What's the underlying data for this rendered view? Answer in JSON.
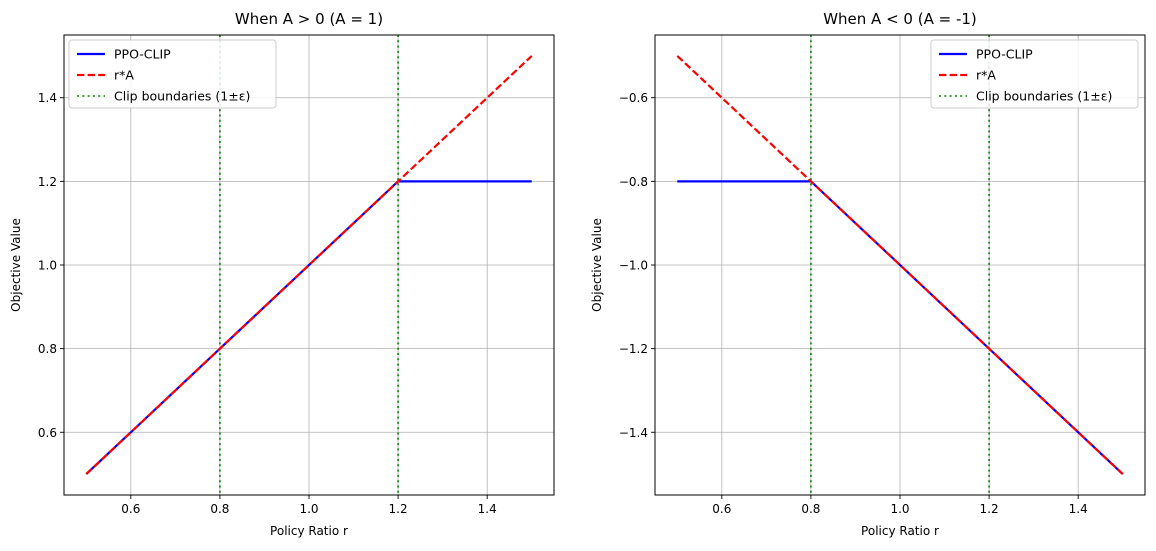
{
  "chart_data": [
    {
      "type": "line",
      "title": "When A > 0 (A = 1)",
      "xlabel": "Policy Ratio r",
      "ylabel": "Objective Value",
      "xlim": [
        0.45,
        1.55
      ],
      "ylim": [
        0.45,
        1.55
      ],
      "xticks": [
        0.6,
        0.8,
        1.0,
        1.2,
        1.4
      ],
      "xtick_labels": [
        "0.6",
        "0.8",
        "1.0",
        "1.2",
        "1.4"
      ],
      "yticks": [
        0.6,
        0.8,
        1.0,
        1.2,
        1.4
      ],
      "ytick_labels": [
        "0.6",
        "0.8",
        "1.0",
        "1.2",
        "1.4"
      ],
      "grid": true,
      "legend_position": "top-left",
      "series": [
        {
          "name": "PPO-CLIP",
          "color": "#0000ff",
          "style": "solid",
          "x": [
            0.5,
            1.2,
            1.5
          ],
          "y": [
            0.5,
            1.2,
            1.2
          ]
        },
        {
          "name": "r*A",
          "color": "#ff0000",
          "style": "dashed",
          "x": [
            0.5,
            1.5
          ],
          "y": [
            0.5,
            1.5
          ]
        }
      ],
      "vlines": {
        "name": "Clip boundaries (1±ε)",
        "color": "#008000",
        "style": "dotted",
        "x": [
          0.8,
          1.2
        ]
      }
    },
    {
      "type": "line",
      "title": "When A < 0 (A = -1)",
      "xlabel": "Policy Ratio r",
      "ylabel": "Objective Value",
      "xlim": [
        0.45,
        1.55
      ],
      "ylim": [
        -1.55,
        -0.45
      ],
      "xticks": [
        0.6,
        0.8,
        1.0,
        1.2,
        1.4
      ],
      "xtick_labels": [
        "0.6",
        "0.8",
        "1.0",
        "1.2",
        "1.4"
      ],
      "yticks": [
        -1.4,
        -1.2,
        -1.0,
        -0.8,
        -0.6
      ],
      "ytick_labels": [
        "−1.4",
        "−1.2",
        "−1.0",
        "−0.8",
        "−0.6"
      ],
      "grid": true,
      "legend_position": "top-right",
      "series": [
        {
          "name": "PPO-CLIP",
          "color": "#0000ff",
          "style": "solid",
          "x": [
            0.5,
            0.8,
            1.5
          ],
          "y": [
            -0.8,
            -0.8,
            -1.5
          ]
        },
        {
          "name": "r*A",
          "color": "#ff0000",
          "style": "dashed",
          "x": [
            0.5,
            1.5
          ],
          "y": [
            -0.5,
            -1.5
          ]
        }
      ],
      "vlines": {
        "name": "Clip boundaries (1±ε)",
        "color": "#008000",
        "style": "dotted",
        "x": [
          0.8,
          1.2
        ]
      }
    }
  ]
}
